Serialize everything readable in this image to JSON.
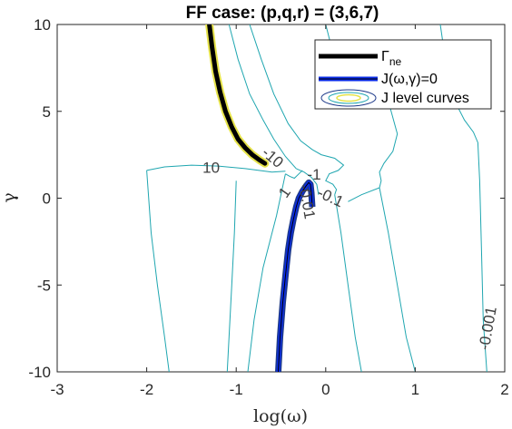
{
  "chart_data": {
    "type": "line",
    "title": "FF case: (p,q,r) = (3,6,7)",
    "xlabel": "log(ω)",
    "ylabel": "γ",
    "xlim": [
      -3,
      2
    ],
    "ylim": [
      -10,
      10
    ],
    "xticks": [
      -3,
      -2,
      -1,
      0,
      1,
      2
    ],
    "xtick_labels": [
      "-3",
      "-2",
      "-1",
      "0",
      "1",
      "2"
    ],
    "yticks": [
      -10,
      -5,
      0,
      5,
      10
    ],
    "ytick_labels": [
      "-10",
      "-5",
      "0",
      "5",
      "10"
    ],
    "grid": false,
    "legend_position": "top-right",
    "colors": {
      "gamma_ne": "#000000",
      "j_zero": "#0a2ce8",
      "contours": "#1fa6b0",
      "contours_dark": "#1e3a8a",
      "contours_light": "#e6e34a"
    },
    "series": [
      {
        "name_main": "Γ",
        "name_sub": "ne",
        "style": "thick-black",
        "x": [
          -1.3,
          -1.27,
          -1.23,
          -1.18,
          -1.12,
          -1.05,
          -0.98,
          -0.9,
          -0.82,
          -0.74,
          -0.68
        ],
        "y": [
          10,
          8.7,
          7.3,
          6.1,
          5.0,
          4.1,
          3.4,
          2.9,
          2.5,
          2.2,
          2.0
        ]
      },
      {
        "name": "J(ω,γ)=0",
        "style": "thick-blue",
        "x": [
          -0.53,
          -0.51,
          -0.48,
          -0.45,
          -0.42,
          -0.39,
          -0.36,
          -0.33,
          -0.3,
          -0.26,
          -0.22,
          -0.19,
          -0.17,
          -0.16,
          -0.15
        ],
        "y": [
          -10,
          -8,
          -6,
          -4.5,
          -3,
          -2,
          -1.2,
          -0.5,
          0,
          0.4,
          0.7,
          0.9,
          0.8,
          0.3,
          -0.5
        ]
      },
      {
        "name": "J level curves",
        "style": "contours",
        "levels_labeled": [
          "-10",
          "10",
          "-1",
          "-0.1",
          "1",
          "-0.01",
          "-0.001"
        ]
      }
    ],
    "contours": [
      {
        "level": "10",
        "x": [
          -2.0,
          -1.8,
          -1.5,
          -1.2,
          -0.9,
          -0.6,
          -0.45
        ],
        "y": [
          1.6,
          1.8,
          1.9,
          1.85,
          1.7,
          1.5,
          1.55
        ]
      },
      {
        "level": "10",
        "x": [
          -2.0,
          -1.95,
          -1.88,
          -1.8,
          -1.75
        ],
        "y": [
          1.6,
          -2,
          -5,
          -8,
          -10
        ]
      },
      {
        "level": "10b",
        "x": [
          -1.0,
          -1.02,
          -1.05,
          -1.08,
          -1.1
        ],
        "y": [
          1.0,
          -2,
          -5,
          -8,
          -10
        ]
      },
      {
        "level": "1",
        "x": [
          -0.45,
          -0.55,
          -0.7,
          -0.8,
          -0.87
        ],
        "y": [
          1.4,
          -1,
          -4,
          -7,
          -10
        ]
      },
      {
        "level": "1",
        "x": [
          -0.45,
          -0.4,
          -0.35,
          -0.3,
          -0.26
        ],
        "y": [
          1.4,
          1.25,
          1.15,
          1.4,
          1.6
        ]
      },
      {
        "level": "-10",
        "x": [
          -1.08,
          -0.98,
          -0.85,
          -0.7,
          -0.58,
          -0.45,
          -0.33
        ],
        "y": [
          10,
          8,
          6,
          4.5,
          3.4,
          2.4,
          1.7
        ]
      },
      {
        "level": "-1",
        "x": [
          -0.33,
          -0.24,
          -0.16,
          -0.1,
          -0.08
        ],
        "y": [
          1.7,
          1.5,
          1.2,
          0.8,
          0.2
        ]
      },
      {
        "level": "-0.1",
        "x": [
          -0.85,
          -0.72,
          -0.58,
          -0.42,
          -0.28,
          -0.15,
          -0.05,
          0.1,
          0.2,
          0.14,
          0.04,
          0.0,
          0.08,
          0.12,
          0.1
        ],
        "y": [
          10,
          8,
          6,
          4.3,
          3.3,
          2.8,
          2.5,
          2.3,
          1.9,
          1.6,
          1.4,
          1.0,
          0.8,
          0.5,
          0.2
        ]
      },
      {
        "level": "-0.1",
        "x": [
          0.1,
          0.17,
          0.25,
          0.33,
          0.4
        ],
        "y": [
          0.2,
          -2,
          -5,
          -8,
          -10
        ]
      },
      {
        "level": "-0.01",
        "x": [
          0.0,
          0.05,
          0.1,
          0.15,
          0.25,
          0.45,
          0.6,
          0.72,
          0.8,
          0.75,
          0.65,
          0.6,
          0.62,
          0.6,
          0.4,
          0.25
        ],
        "y": [
          10,
          9,
          8,
          7.3,
          6.8,
          6.4,
          6.0,
          5.2,
          3.7,
          2.7,
          2.0,
          1.5,
          1.0,
          0.6,
          0.2,
          -0.2
        ]
      },
      {
        "level": "-0.01",
        "x": [
          0.6,
          0.7,
          0.8,
          0.9,
          1.0
        ],
        "y": [
          0.6,
          -2,
          -5,
          -8,
          -10
        ]
      },
      {
        "level": "-0.001",
        "x": [
          1.28,
          1.35,
          1.45,
          1.55,
          1.65,
          1.7,
          1.72,
          1.74,
          1.76,
          1.8
        ],
        "y": [
          10,
          7.5,
          5.5,
          4.5,
          3.8,
          3.2,
          1.0,
          -3,
          -7,
          -10
        ]
      }
    ],
    "contour_labels": [
      {
        "text": "-10",
        "x": -0.6,
        "y": 2.3,
        "angle": 40
      },
      {
        "text": "10",
        "x": -1.28,
        "y": 1.7,
        "angle": 0
      },
      {
        "text": "-1",
        "x": -0.13,
        "y": 1.3,
        "angle": 0
      },
      {
        "text": "-0.1",
        "x": 0.05,
        "y": 0.0,
        "angle": 25
      },
      {
        "text": "1",
        "x": -0.45,
        "y": 0.3,
        "angle": -55
      },
      {
        "text": "-0.01",
        "x": -0.22,
        "y": -0.2,
        "angle": 80
      },
      {
        "text": "-0.001",
        "x": 1.82,
        "y": -7.5,
        "angle": -80
      }
    ]
  }
}
